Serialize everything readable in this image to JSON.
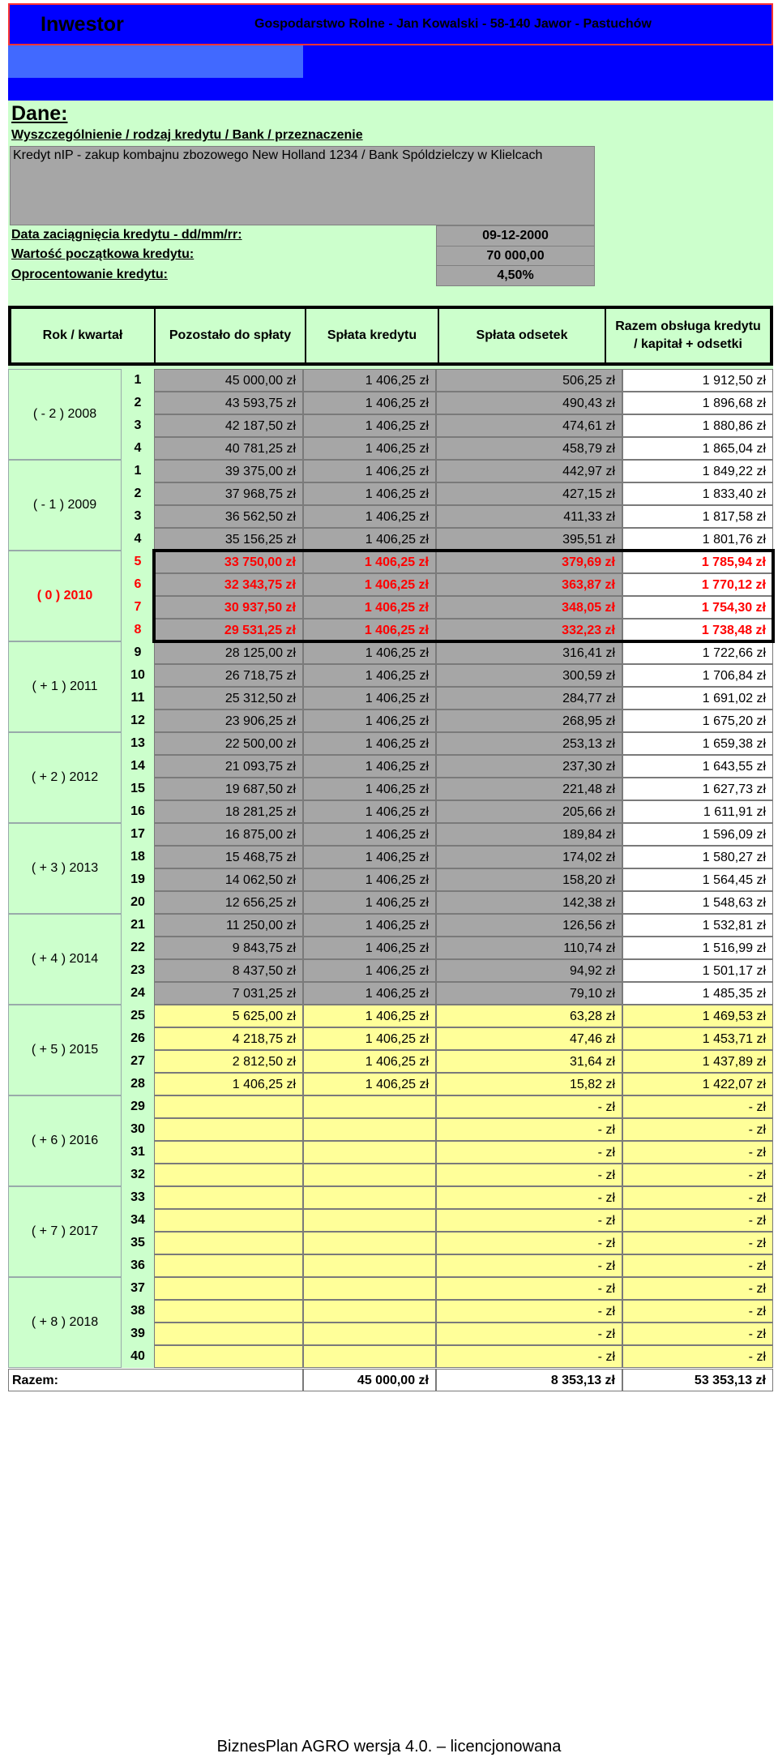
{
  "header": {
    "app": "Inwestor",
    "farm": "Gospodarstwo Rolne - Jan Kowalski  - 58-140 Jawor - Pastuchów"
  },
  "dane": {
    "title": "Dane:",
    "spec_label": "Wyszczególnienie / rodzaj kredytu / Bank / przeznaczenie",
    "spec_value": "Kredyt nIP - zakup kombajnu zbozowego New Holland 1234 / Bank Spóldzielczy w Klielcach",
    "date_label": "Data zaciągnięcia kredytu - dd/mm/rr:",
    "date_value": "09-12-2000",
    "amount_label": "Wartość początkowa kredytu:",
    "amount_value": "70 000,00",
    "rate_label": "Oprocentowanie kredytu:",
    "rate_value": "4,50%"
  },
  "table": {
    "headers": [
      "Rok / kwartał",
      "Pozostało do spłaty",
      "Spłata kredytu",
      "Spłata odsetek",
      "Razem obsługa kredytu / kapitał + odsetki"
    ],
    "years": [
      "( - 2 )  2008",
      "( - 1 )  2009",
      "( 0 )  2010",
      "( + 1 )  2011",
      "( + 2 )  2012",
      "( + 3 )  2013",
      "( + 4 )  2014",
      "( + 5 )  2015",
      "( + 6 )  2016",
      "( + 7 )  2017",
      "( + 8 )  2018"
    ],
    "rows": [
      {
        "q": "1",
        "rem": "45 000,00 zł",
        "pay": "1 406,25 zł",
        "int": "506,25 zł",
        "tot": "1 912,50 zł"
      },
      {
        "q": "2",
        "rem": "43 593,75 zł",
        "pay": "1 406,25 zł",
        "int": "490,43 zł",
        "tot": "1 896,68 zł"
      },
      {
        "q": "3",
        "rem": "42 187,50 zł",
        "pay": "1 406,25 zł",
        "int": "474,61 zł",
        "tot": "1 880,86 zł"
      },
      {
        "q": "4",
        "rem": "40 781,25 zł",
        "pay": "1 406,25 zł",
        "int": "458,79 zł",
        "tot": "1 865,04 zł"
      },
      {
        "q": "1",
        "rem": "39 375,00 zł",
        "pay": "1 406,25 zł",
        "int": "442,97 zł",
        "tot": "1 849,22 zł"
      },
      {
        "q": "2",
        "rem": "37 968,75 zł",
        "pay": "1 406,25 zł",
        "int": "427,15 zł",
        "tot": "1 833,40 zł"
      },
      {
        "q": "3",
        "rem": "36 562,50 zł",
        "pay": "1 406,25 zł",
        "int": "411,33 zł",
        "tot": "1 817,58 zł"
      },
      {
        "q": "4",
        "rem": "35 156,25 zł",
        "pay": "1 406,25 zł",
        "int": "395,51 zł",
        "tot": "1 801,76 zł"
      },
      {
        "q": "5",
        "rem": "33 750,00 zł",
        "pay": "1 406,25 zł",
        "int": "379,69 zł",
        "tot": "1 785,94 zł"
      },
      {
        "q": "6",
        "rem": "32 343,75 zł",
        "pay": "1 406,25 zł",
        "int": "363,87 zł",
        "tot": "1 770,12 zł"
      },
      {
        "q": "7",
        "rem": "30 937,50 zł",
        "pay": "1 406,25 zł",
        "int": "348,05 zł",
        "tot": "1 754,30 zł"
      },
      {
        "q": "8",
        "rem": "29 531,25 zł",
        "pay": "1 406,25 zł",
        "int": "332,23 zł",
        "tot": "1 738,48 zł"
      },
      {
        "q": "9",
        "rem": "28 125,00 zł",
        "pay": "1 406,25 zł",
        "int": "316,41 zł",
        "tot": "1 722,66 zł"
      },
      {
        "q": "10",
        "rem": "26 718,75 zł",
        "pay": "1 406,25 zł",
        "int": "300,59 zł",
        "tot": "1 706,84 zł"
      },
      {
        "q": "11",
        "rem": "25 312,50 zł",
        "pay": "1 406,25 zł",
        "int": "284,77 zł",
        "tot": "1 691,02 zł"
      },
      {
        "q": "12",
        "rem": "23 906,25 zł",
        "pay": "1 406,25 zł",
        "int": "268,95 zł",
        "tot": "1 675,20 zł"
      },
      {
        "q": "13",
        "rem": "22 500,00 zł",
        "pay": "1 406,25 zł",
        "int": "253,13 zł",
        "tot": "1 659,38 zł"
      },
      {
        "q": "14",
        "rem": "21 093,75 zł",
        "pay": "1 406,25 zł",
        "int": "237,30 zł",
        "tot": "1 643,55 zł"
      },
      {
        "q": "15",
        "rem": "19 687,50 zł",
        "pay": "1 406,25 zł",
        "int": "221,48 zł",
        "tot": "1 627,73 zł"
      },
      {
        "q": "16",
        "rem": "18 281,25 zł",
        "pay": "1 406,25 zł",
        "int": "205,66 zł",
        "tot": "1 611,91 zł"
      },
      {
        "q": "17",
        "rem": "16 875,00 zł",
        "pay": "1 406,25 zł",
        "int": "189,84 zł",
        "tot": "1 596,09 zł"
      },
      {
        "q": "18",
        "rem": "15 468,75 zł",
        "pay": "1 406,25 zł",
        "int": "174,02 zł",
        "tot": "1 580,27 zł"
      },
      {
        "q": "19",
        "rem": "14 062,50 zł",
        "pay": "1 406,25 zł",
        "int": "158,20 zł",
        "tot": "1 564,45 zł"
      },
      {
        "q": "20",
        "rem": "12 656,25 zł",
        "pay": "1 406,25 zł",
        "int": "142,38 zł",
        "tot": "1 548,63 zł"
      },
      {
        "q": "21",
        "rem": "11 250,00 zł",
        "pay": "1 406,25 zł",
        "int": "126,56 zł",
        "tot": "1 532,81 zł"
      },
      {
        "q": "22",
        "rem": "9 843,75 zł",
        "pay": "1 406,25 zł",
        "int": "110,74 zł",
        "tot": "1 516,99 zł"
      },
      {
        "q": "23",
        "rem": "8 437,50 zł",
        "pay": "1 406,25 zł",
        "int": "94,92 zł",
        "tot": "1 501,17 zł"
      },
      {
        "q": "24",
        "rem": "7 031,25 zł",
        "pay": "1 406,25 zł",
        "int": "79,10 zł",
        "tot": "1 485,35 zł"
      },
      {
        "q": "25",
        "rem": "5 625,00 zł",
        "pay": "1 406,25 zł",
        "int": "63,28 zł",
        "tot": "1 469,53 zł"
      },
      {
        "q": "26",
        "rem": "4 218,75 zł",
        "pay": "1 406,25 zł",
        "int": "47,46 zł",
        "tot": "1 453,71 zł"
      },
      {
        "q": "27",
        "rem": "2 812,50 zł",
        "pay": "1 406,25 zł",
        "int": "31,64 zł",
        "tot": "1 437,89 zł"
      },
      {
        "q": "28",
        "rem": "1 406,25 zł",
        "pay": "1 406,25 zł",
        "int": "15,82 zł",
        "tot": "1 422,07 zł"
      },
      {
        "q": "29",
        "rem": "",
        "pay": "",
        "int": "-   zł",
        "tot": "-   zł"
      },
      {
        "q": "30",
        "rem": "",
        "pay": "",
        "int": "-   zł",
        "tot": "-   zł"
      },
      {
        "q": "31",
        "rem": "",
        "pay": "",
        "int": "-   zł",
        "tot": "-   zł"
      },
      {
        "q": "32",
        "rem": "",
        "pay": "",
        "int": "-   zł",
        "tot": "-   zł"
      },
      {
        "q": "33",
        "rem": "",
        "pay": "",
        "int": "-   zł",
        "tot": "-   zł"
      },
      {
        "q": "34",
        "rem": "",
        "pay": "",
        "int": "-   zł",
        "tot": "-   zł"
      },
      {
        "q": "35",
        "rem": "",
        "pay": "",
        "int": "-   zł",
        "tot": "-   zł"
      },
      {
        "q": "36",
        "rem": "",
        "pay": "",
        "int": "-   zł",
        "tot": "-   zł"
      },
      {
        "q": "37",
        "rem": "",
        "pay": "",
        "int": "-   zł",
        "tot": "-   zł"
      },
      {
        "q": "38",
        "rem": "",
        "pay": "",
        "int": "-   zł",
        "tot": "-   zł"
      },
      {
        "q": "39",
        "rem": "",
        "pay": "",
        "int": "-   zł",
        "tot": "-   zł"
      },
      {
        "q": "40",
        "rem": "",
        "pay": "",
        "int": "-   zł",
        "tot": "-   zł"
      }
    ],
    "totals": {
      "label": "Razem:",
      "pay": "45 000,00 zł",
      "int": "8 353,13 zł",
      "tot": "53 353,13 zł"
    }
  },
  "footer": "BiznesPlan AGRO wersja 4.0. – licencjonowana",
  "colors": {
    "header_blue": "#0000ff",
    "panel_green": "#ccffcc",
    "cell_grey": "#a6a6a6",
    "empty_yellow": "#ffff99",
    "current_red": "#ff0000"
  }
}
